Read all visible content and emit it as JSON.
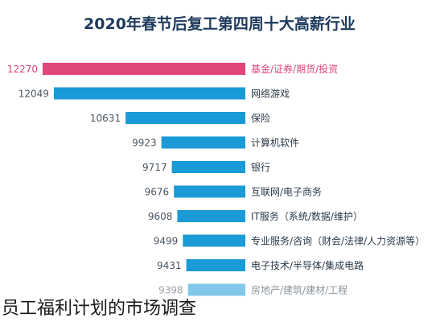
{
  "chart_data": {
    "type": "bar",
    "orientation": "horizontal",
    "title": "2020年春节后复工第四周十大高薪行业",
    "categories": [
      "基金/证券/期货/投资",
      "网络游戏",
      "保险",
      "计算机软件",
      "银行",
      "互联网/电子商务",
      "IT服务（系统/数据/维护）",
      "专业服务/咨询（财会/法律/人力资源等）",
      "电子技术/半导体/集成电路",
      "房地产/建筑/建材/工程"
    ],
    "values": [
      12270,
      12049,
      10631,
      9923,
      9717,
      9676,
      9608,
      9499,
      9431,
      9398
    ],
    "value_labels": [
      "12270",
      "12049",
      "10631",
      "9923",
      "9717",
      "9676",
      "9608",
      "9499",
      "9431",
      "9398"
    ],
    "highlight_index": 0,
    "colors": {
      "highlight": "#e0457b",
      "bar": "#1a9ad6",
      "title": "#1e3a5c",
      "label": "#2b3a4a"
    },
    "grid": false,
    "legend": "none"
  },
  "caption": "员工福利计划的市场调查"
}
